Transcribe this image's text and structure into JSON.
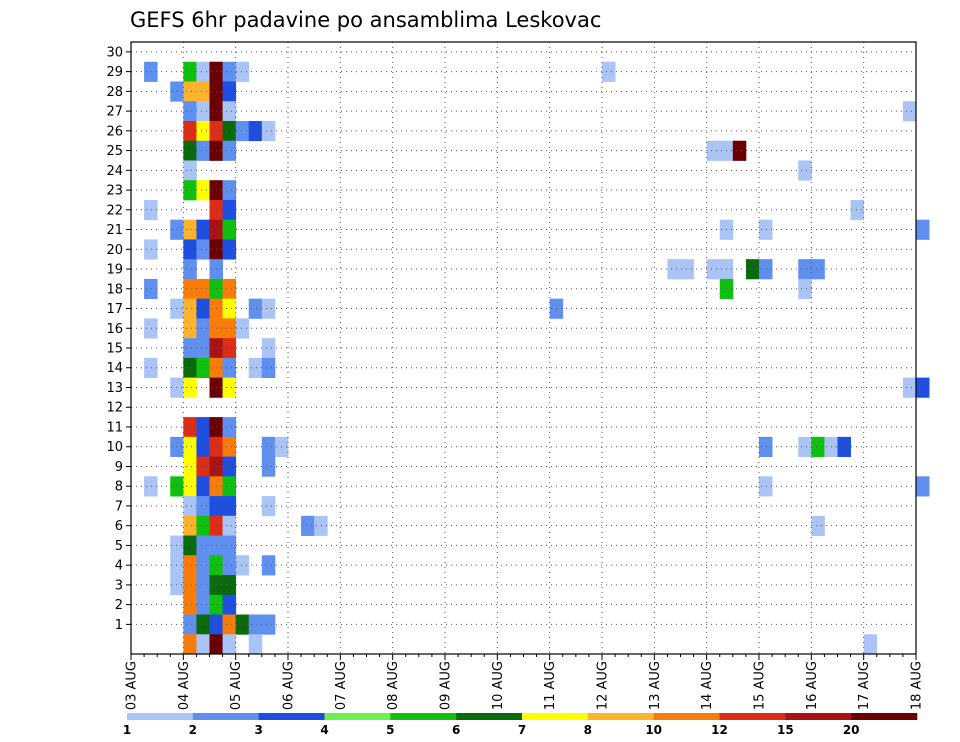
{
  "chart_data": {
    "type": "heatmap",
    "title": "GEFS 6hr padavine po ansamblima Leskovac",
    "xlabel": "",
    "ylabel": "",
    "x_ticks": [
      "03 AUG",
      "04 AUG",
      "05 AUG",
      "06 AUG",
      "07 AUG",
      "08 AUG",
      "09 AUG",
      "10 AUG",
      "11 AUG",
      "12 AUG",
      "13 AUG",
      "14 AUG",
      "15 AUG",
      "16 AUG",
      "17 AUG",
      "18 AUG"
    ],
    "y_ticks": [
      "1",
      "2",
      "3",
      "4",
      "5",
      "6",
      "7",
      "8",
      "9",
      "10",
      "11",
      "12",
      "13",
      "14",
      "15",
      "16",
      "17",
      "18",
      "19",
      "20",
      "21",
      "22",
      "23",
      "24",
      "25",
      "26",
      "27",
      "28",
      "29",
      "30"
    ],
    "grid": "dotted",
    "time_step_hours": 6,
    "members": 30,
    "colorbar": {
      "labels": [
        "1",
        "2",
        "3",
        "4",
        "5",
        "6",
        "7",
        "8",
        "10",
        "12",
        "15",
        "20"
      ],
      "colors": [
        "#aac4f5",
        "#5f8fef",
        "#1e4fe0",
        "#6ef050",
        "#10c010",
        "#0b6a0b",
        "#ffff00",
        "#fdb42c",
        "#f77c0a",
        "#dc2e16",
        "#a81414",
        "#6a0000"
      ]
    },
    "cells": [
      {
        "member": 29,
        "x": "2025-08-03T06",
        "class": "2"
      },
      {
        "member": 29,
        "x": "2025-08-04T00",
        "class": "5"
      },
      {
        "member": 29,
        "x": "2025-08-04T06",
        "class": "1"
      },
      {
        "member": 29,
        "x": "2025-08-04T12",
        "class": "20+"
      },
      {
        "member": 29,
        "x": "2025-08-04T18",
        "class": "2"
      },
      {
        "member": 29,
        "x": "2025-08-05T00",
        "class": "1"
      },
      {
        "member": 29,
        "x": "2025-08-12T00",
        "class": "1"
      },
      {
        "member": 28,
        "x": "2025-08-03T18",
        "class": "2"
      },
      {
        "member": 28,
        "x": "2025-08-04T00",
        "class": "8"
      },
      {
        "member": 28,
        "x": "2025-08-04T06",
        "class": "8"
      },
      {
        "member": 28,
        "x": "2025-08-04T12",
        "class": "20"
      },
      {
        "member": 28,
        "x": "2025-08-04T18",
        "class": "3"
      },
      {
        "member": 27,
        "x": "2025-08-04T00",
        "class": "2"
      },
      {
        "member": 27,
        "x": "2025-08-04T06",
        "class": "1"
      },
      {
        "member": 27,
        "x": "2025-08-04T12",
        "class": "20"
      },
      {
        "member": 27,
        "x": "2025-08-04T18",
        "class": "1"
      },
      {
        "member": 27,
        "x": "2025-08-17T18",
        "class": "1"
      },
      {
        "member": 26,
        "x": "2025-08-04T00",
        "class": "12"
      },
      {
        "member": 26,
        "x": "2025-08-04T06",
        "class": "7"
      },
      {
        "member": 26,
        "x": "2025-08-04T12",
        "class": "12"
      },
      {
        "member": 26,
        "x": "2025-08-04T18",
        "class": "6"
      },
      {
        "member": 26,
        "x": "2025-08-05T00",
        "class": "2"
      },
      {
        "member": 26,
        "x": "2025-08-05T06",
        "class": "3"
      },
      {
        "member": 26,
        "x": "2025-08-05T12",
        "class": "1"
      },
      {
        "member": 25,
        "x": "2025-08-04T00",
        "class": "6"
      },
      {
        "member": 25,
        "x": "2025-08-04T06",
        "class": "2"
      },
      {
        "member": 25,
        "x": "2025-08-04T12",
        "class": "20+"
      },
      {
        "member": 25,
        "x": "2025-08-04T18",
        "class": "2"
      },
      {
        "member": 25,
        "x": "2025-08-14T00",
        "class": "1"
      },
      {
        "member": 25,
        "x": "2025-08-14T06",
        "class": "1"
      },
      {
        "member": 25,
        "x": "2025-08-14T12",
        "class": "20+"
      },
      {
        "member": 24,
        "x": "2025-08-04T00",
        "class": "1"
      },
      {
        "member": 24,
        "x": "2025-08-15T18",
        "class": "1"
      },
      {
        "member": 23,
        "x": "2025-08-04T00",
        "class": "5"
      },
      {
        "member": 23,
        "x": "2025-08-04T06",
        "class": "7"
      },
      {
        "member": 23,
        "x": "2025-08-04T12",
        "class": "20+"
      },
      {
        "member": 23,
        "x": "2025-08-04T18",
        "class": "2"
      },
      {
        "member": 22,
        "x": "2025-08-03T06",
        "class": "1"
      },
      {
        "member": 22,
        "x": "2025-08-04T12",
        "class": "12"
      },
      {
        "member": 22,
        "x": "2025-08-04T18",
        "class": "3"
      },
      {
        "member": 22,
        "x": "2025-08-16T18",
        "class": "1"
      },
      {
        "member": 21,
        "x": "2025-08-03T18",
        "class": "2"
      },
      {
        "member": 21,
        "x": "2025-08-04T00",
        "class": "8"
      },
      {
        "member": 21,
        "x": "2025-08-04T06",
        "class": "3"
      },
      {
        "member": 21,
        "x": "2025-08-04T12",
        "class": "15"
      },
      {
        "member": 21,
        "x": "2025-08-04T18",
        "class": "5"
      },
      {
        "member": 21,
        "x": "2025-08-14T06",
        "class": "1"
      },
      {
        "member": 21,
        "x": "2025-08-15T00",
        "class": "1"
      },
      {
        "member": 21,
        "x": "2025-08-18T00",
        "class": "2"
      },
      {
        "member": 20,
        "x": "2025-08-03T06",
        "class": "1"
      },
      {
        "member": 20,
        "x": "2025-08-04T00",
        "class": "3"
      },
      {
        "member": 20,
        "x": "2025-08-04T06",
        "class": "2"
      },
      {
        "member": 20,
        "x": "2025-08-04T12",
        "class": "20+"
      },
      {
        "member": 20,
        "x": "2025-08-04T18",
        "class": "3"
      },
      {
        "member": 19,
        "x": "2025-08-04T00",
        "class": "2"
      },
      {
        "member": 19,
        "x": "2025-08-04T12",
        "class": "2"
      },
      {
        "member": 19,
        "x": "2025-08-13T06",
        "class": "1"
      },
      {
        "member": 19,
        "x": "2025-08-13T12",
        "class": "1"
      },
      {
        "member": 19,
        "x": "2025-08-14T00",
        "class": "1"
      },
      {
        "member": 19,
        "x": "2025-08-14T06",
        "class": "1"
      },
      {
        "member": 19,
        "x": "2025-08-14T18",
        "class": "6"
      },
      {
        "member": 19,
        "x": "2025-08-15T00",
        "class": "2"
      },
      {
        "member": 19,
        "x": "2025-08-15T18",
        "class": "2"
      },
      {
        "member": 19,
        "x": "2025-08-16T00",
        "class": "2"
      },
      {
        "member": 18,
        "x": "2025-08-03T06",
        "class": "2"
      },
      {
        "member": 18,
        "x": "2025-08-04T00",
        "class": "10"
      },
      {
        "member": 18,
        "x": "2025-08-04T06",
        "class": "10"
      },
      {
        "member": 18,
        "x": "2025-08-04T12",
        "class": "5"
      },
      {
        "member": 18,
        "x": "2025-08-04T18",
        "class": "10"
      },
      {
        "member": 18,
        "x": "2025-08-14T06",
        "class": "5"
      },
      {
        "member": 18,
        "x": "2025-08-15T18",
        "class": "1"
      },
      {
        "member": 17,
        "x": "2025-08-03T18",
        "class": "1"
      },
      {
        "member": 17,
        "x": "2025-08-04T00",
        "class": "8"
      },
      {
        "member": 17,
        "x": "2025-08-04T06",
        "class": "3"
      },
      {
        "member": 17,
        "x": "2025-08-04T12",
        "class": "10"
      },
      {
        "member": 17,
        "x": "2025-08-04T18",
        "class": "7"
      },
      {
        "member": 17,
        "x": "2025-08-05T06",
        "class": "2"
      },
      {
        "member": 17,
        "x": "2025-08-05T12",
        "class": "1"
      },
      {
        "member": 17,
        "x": "2025-08-11T00",
        "class": "2"
      },
      {
        "member": 16,
        "x": "2025-08-03T06",
        "class": "1"
      },
      {
        "member": 16,
        "x": "2025-08-04T00",
        "class": "8"
      },
      {
        "member": 16,
        "x": "2025-08-04T06",
        "class": "2"
      },
      {
        "member": 16,
        "x": "2025-08-04T12",
        "class": "10"
      },
      {
        "member": 16,
        "x": "2025-08-04T18",
        "class": "10"
      },
      {
        "member": 16,
        "x": "2025-08-05T00",
        "class": "1"
      },
      {
        "member": 15,
        "x": "2025-08-04T00",
        "class": "2"
      },
      {
        "member": 15,
        "x": "2025-08-04T06",
        "class": "2"
      },
      {
        "member": 15,
        "x": "2025-08-04T12",
        "class": "15"
      },
      {
        "member": 15,
        "x": "2025-08-04T18",
        "class": "12"
      },
      {
        "member": 15,
        "x": "2025-08-05T12",
        "class": "1"
      },
      {
        "member": 14,
        "x": "2025-08-03T06",
        "class": "1"
      },
      {
        "member": 14,
        "x": "2025-08-04T00",
        "class": "6"
      },
      {
        "member": 14,
        "x": "2025-08-04T06",
        "class": "5"
      },
      {
        "member": 14,
        "x": "2025-08-04T12",
        "class": "10"
      },
      {
        "member": 14,
        "x": "2025-08-04T18",
        "class": "2"
      },
      {
        "member": 14,
        "x": "2025-08-05T06",
        "class": "1"
      },
      {
        "member": 14,
        "x": "2025-08-05T12",
        "class": "2"
      },
      {
        "member": 13,
        "x": "2025-08-03T18",
        "class": "1"
      },
      {
        "member": 13,
        "x": "2025-08-04T00",
        "class": "7"
      },
      {
        "member": 13,
        "x": "2025-08-04T12",
        "class": "20"
      },
      {
        "member": 13,
        "x": "2025-08-04T18",
        "class": "7"
      },
      {
        "member": 13,
        "x": "2025-08-17T18",
        "class": "1"
      },
      {
        "member": 13,
        "x": "2025-08-18T00",
        "class": "3"
      },
      {
        "member": 11,
        "x": "2025-08-04T00",
        "class": "12"
      },
      {
        "member": 11,
        "x": "2025-08-04T06",
        "class": "3"
      },
      {
        "member": 11,
        "x": "2025-08-04T12",
        "class": "20+"
      },
      {
        "member": 11,
        "x": "2025-08-04T18",
        "class": "2"
      },
      {
        "member": 10,
        "x": "2025-08-03T18",
        "class": "2"
      },
      {
        "member": 10,
        "x": "2025-08-04T00",
        "class": "7"
      },
      {
        "member": 10,
        "x": "2025-08-04T06",
        "class": "3"
      },
      {
        "member": 10,
        "x": "2025-08-04T12",
        "class": "12"
      },
      {
        "member": 10,
        "x": "2025-08-04T18",
        "class": "10"
      },
      {
        "member": 10,
        "x": "2025-08-05T12",
        "class": "2"
      },
      {
        "member": 10,
        "x": "2025-08-05T18",
        "class": "1"
      },
      {
        "member": 10,
        "x": "2025-08-15T00",
        "class": "2"
      },
      {
        "member": 10,
        "x": "2025-08-15T18",
        "class": "1"
      },
      {
        "member": 10,
        "x": "2025-08-16T00",
        "class": "5"
      },
      {
        "member": 10,
        "x": "2025-08-16T06",
        "class": "1"
      },
      {
        "member": 10,
        "x": "2025-08-16T12",
        "class": "3"
      },
      {
        "member": 9,
        "x": "2025-08-04T00",
        "class": "7"
      },
      {
        "member": 9,
        "x": "2025-08-04T06",
        "class": "12"
      },
      {
        "member": 9,
        "x": "2025-08-04T12",
        "class": "15"
      },
      {
        "member": 9,
        "x": "2025-08-04T18",
        "class": "3"
      },
      {
        "member": 9,
        "x": "2025-08-05T12",
        "class": "2"
      },
      {
        "member": 8,
        "x": "2025-08-03T06",
        "class": "1"
      },
      {
        "member": 8,
        "x": "2025-08-03T18",
        "class": "5"
      },
      {
        "member": 8,
        "x": "2025-08-04T00",
        "class": "7"
      },
      {
        "member": 8,
        "x": "2025-08-04T06",
        "class": "3"
      },
      {
        "member": 8,
        "x": "2025-08-04T12",
        "class": "10"
      },
      {
        "member": 8,
        "x": "2025-08-04T18",
        "class": "5"
      },
      {
        "member": 8,
        "x": "2025-08-15T00",
        "class": "1"
      },
      {
        "member": 8,
        "x": "2025-08-18T00",
        "class": "2"
      },
      {
        "member": 7,
        "x": "2025-08-04T00",
        "class": "1"
      },
      {
        "member": 7,
        "x": "2025-08-04T06",
        "class": "2"
      },
      {
        "member": 7,
        "x": "2025-08-04T12",
        "class": "3"
      },
      {
        "member": 7,
        "x": "2025-08-04T18",
        "class": "3"
      },
      {
        "member": 7,
        "x": "2025-08-05T12",
        "class": "1"
      },
      {
        "member": 6,
        "x": "2025-08-04T00",
        "class": "8"
      },
      {
        "member": 6,
        "x": "2025-08-04T06",
        "class": "5"
      },
      {
        "member": 6,
        "x": "2025-08-04T12",
        "class": "12"
      },
      {
        "member": 6,
        "x": "2025-08-04T18",
        "class": "1"
      },
      {
        "member": 6,
        "x": "2025-08-06T06",
        "class": "2"
      },
      {
        "member": 6,
        "x": "2025-08-06T12",
        "class": "1"
      },
      {
        "member": 6,
        "x": "2025-08-16T00",
        "class": "1"
      },
      {
        "member": 5,
        "x": "2025-08-03T18",
        "class": "1"
      },
      {
        "member": 5,
        "x": "2025-08-04T00",
        "class": "6"
      },
      {
        "member": 5,
        "x": "2025-08-04T06",
        "class": "2"
      },
      {
        "member": 5,
        "x": "2025-08-04T12",
        "class": "2"
      },
      {
        "member": 5,
        "x": "2025-08-04T18",
        "class": "2"
      },
      {
        "member": 4,
        "x": "2025-08-03T18",
        "class": "1"
      },
      {
        "member": 4,
        "x": "2025-08-04T00",
        "class": "10"
      },
      {
        "member": 4,
        "x": "2025-08-04T06",
        "class": "2"
      },
      {
        "member": 4,
        "x": "2025-08-04T12",
        "class": "5"
      },
      {
        "member": 4,
        "x": "2025-08-04T18",
        "class": "2"
      },
      {
        "member": 4,
        "x": "2025-08-05T00",
        "class": "1"
      },
      {
        "member": 4,
        "x": "2025-08-05T12",
        "class": "2"
      },
      {
        "member": 3,
        "x": "2025-08-03T18",
        "class": "1"
      },
      {
        "member": 3,
        "x": "2025-08-04T00",
        "class": "10"
      },
      {
        "member": 3,
        "x": "2025-08-04T06",
        "class": "2"
      },
      {
        "member": 3,
        "x": "2025-08-04T12",
        "class": "6"
      },
      {
        "member": 3,
        "x": "2025-08-04T18",
        "class": "6"
      },
      {
        "member": 2,
        "x": "2025-08-04T00",
        "class": "10"
      },
      {
        "member": 2,
        "x": "2025-08-04T06",
        "class": "2"
      },
      {
        "member": 2,
        "x": "2025-08-04T12",
        "class": "5"
      },
      {
        "member": 2,
        "x": "2025-08-04T18",
        "class": "3"
      },
      {
        "member": 1,
        "x": "2025-08-04T00",
        "class": "2"
      },
      {
        "member": 1,
        "x": "2025-08-04T06",
        "class": "6"
      },
      {
        "member": 1,
        "x": "2025-08-04T12",
        "class": "3"
      },
      {
        "member": 1,
        "x": "2025-08-04T18",
        "class": "10"
      },
      {
        "member": 1,
        "x": "2025-08-05T00",
        "class": "6"
      },
      {
        "member": 1,
        "x": "2025-08-05T06",
        "class": "2"
      },
      {
        "member": 1,
        "x": "2025-08-05T12",
        "class": "2"
      },
      {
        "member": 0,
        "x": "2025-08-04T00",
        "class": "10"
      },
      {
        "member": 0,
        "x": "2025-08-04T06",
        "class": "1"
      },
      {
        "member": 0,
        "x": "2025-08-04T12",
        "class": "20+"
      },
      {
        "member": 0,
        "x": "2025-08-04T18",
        "class": "1"
      },
      {
        "member": 0,
        "x": "2025-08-05T06",
        "class": "1"
      },
      {
        "member": 0,
        "x": "2025-08-17T00",
        "class": "1"
      }
    ]
  }
}
